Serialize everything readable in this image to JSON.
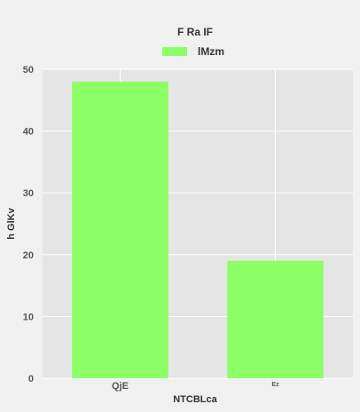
{
  "chart_data": {
    "type": "bar",
    "title": "F Ra  IF",
    "xlabel": "NTCBLca",
    "ylabel": "h GlKv",
    "categories": [
      "QjE",
      "Ez"
    ],
    "series": [
      {
        "name": "lMzm",
        "values": [
          48,
          19
        ]
      }
    ],
    "ylim": [
      0,
      50
    ],
    "yticks": [
      0,
      10,
      20,
      30,
      40,
      50
    ],
    "grid": true,
    "legend": "top-center",
    "colors": {
      "bar": "#8cff66",
      "plot_background": "#e5e5e5",
      "figure_background": "#f0f0f0",
      "grid": "#ffffff"
    }
  }
}
